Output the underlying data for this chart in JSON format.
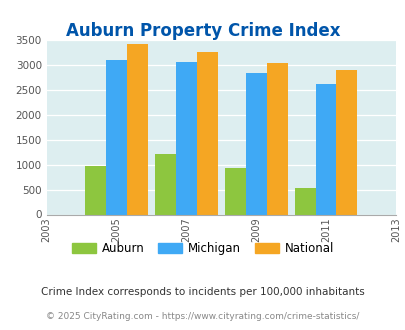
{
  "title": "Auburn Property Crime Index",
  "years": [
    2003,
    2005,
    2007,
    2009,
    2011,
    2013
  ],
  "bar_years": [
    2005,
    2007,
    2009,
    2011
  ],
  "auburn": [
    975,
    1220,
    930,
    530
  ],
  "michigan": [
    3090,
    3060,
    2830,
    2620
  ],
  "national": [
    3410,
    3260,
    3040,
    2890
  ],
  "auburn_color": "#8dc63f",
  "michigan_color": "#3fa9f5",
  "national_color": "#f5a623",
  "bg_color": "#ddeef0",
  "ylim": [
    0,
    3500
  ],
  "yticks": [
    0,
    500,
    1000,
    1500,
    2000,
    2500,
    3000,
    3500
  ],
  "title_color": "#0055aa",
  "title_fontsize": 12,
  "footnote1": "Crime Index corresponds to incidents per 100,000 inhabitants",
  "footnote2": "© 2025 CityRating.com - https://www.cityrating.com/crime-statistics/",
  "footnote1_color": "#333333",
  "footnote2_color": "#888888",
  "bar_width": 0.6
}
